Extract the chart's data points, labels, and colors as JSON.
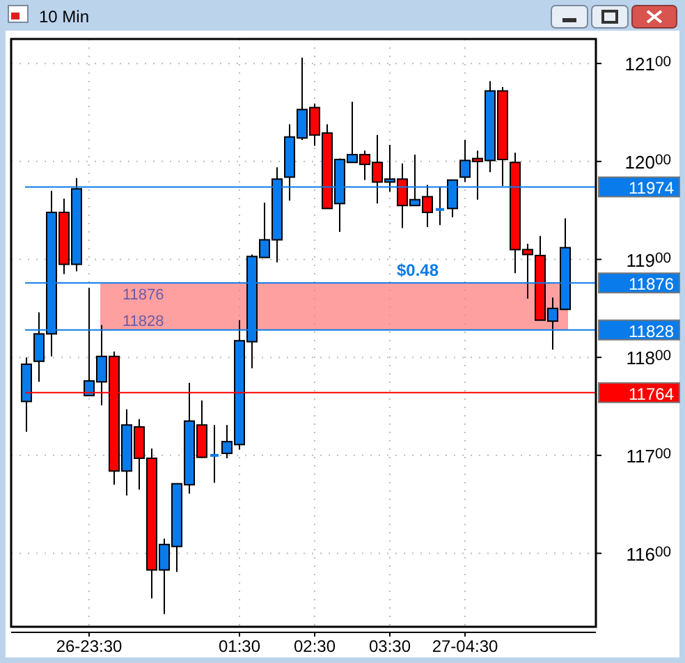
{
  "chart_data": {
    "type": "candlestick",
    "title": "10 Min",
    "categories": [
      null,
      null,
      null,
      null,
      null,
      "26-23:30",
      null,
      null,
      null,
      null,
      null,
      null,
      null,
      null,
      null,
      null,
      null,
      "01:30",
      null,
      null,
      null,
      null,
      null,
      "02:30",
      null,
      null,
      null,
      null,
      null,
      "03:30",
      null,
      null,
      null,
      null,
      null,
      "27-04:30",
      null,
      null,
      null,
      null,
      null,
      null,
      null,
      null
    ],
    "ohlc": [
      [
        11755,
        11800,
        11724,
        11793
      ],
      [
        11796,
        11846,
        11775,
        11824
      ],
      [
        11824,
        11970,
        11801,
        11948
      ],
      [
        11948,
        11962,
        11885,
        11895
      ],
      [
        11895,
        11983,
        11888,
        11972
      ],
      [
        11761,
        11871,
        11761,
        11776
      ],
      [
        11775,
        11833,
        11751,
        11801
      ],
      [
        11801,
        11806,
        11670,
        11684
      ],
      [
        11684,
        11747,
        11659,
        11731
      ],
      [
        11729,
        11737,
        11665,
        11697
      ],
      [
        11697,
        11707,
        11554,
        11583
      ],
      [
        11583,
        11615,
        11538,
        11609
      ],
      [
        11607,
        11671,
        11581,
        11671
      ],
      [
        11670,
        11774,
        11661,
        11735
      ],
      [
        11731,
        11756,
        11697,
        11698
      ],
      [
        11700,
        11731,
        11672,
        11700
      ],
      [
        11702,
        11731,
        11697,
        11714
      ],
      [
        11711,
        11838,
        11706,
        11817
      ],
      [
        11816,
        11905,
        11789,
        11903
      ],
      [
        11902,
        11958,
        11902,
        11920
      ],
      [
        11920,
        11994,
        11897,
        11982
      ],
      [
        11984,
        12038,
        11960,
        12025
      ],
      [
        12024,
        12106,
        12022,
        12053
      ],
      [
        12055,
        12059,
        12016,
        12027
      ],
      [
        12029,
        12038,
        11952,
        11952
      ],
      [
        11957,
        12003,
        11928,
        12002
      ],
      [
        11999,
        12061,
        11999,
        12007
      ],
      [
        12007,
        12011,
        11981,
        11997
      ],
      [
        11999,
        12027,
        11957,
        11979
      ],
      [
        11979,
        12017,
        11969,
        11982
      ],
      [
        11982,
        11998,
        11932,
        11955
      ],
      [
        11955,
        12007,
        11955,
        11961
      ],
      [
        11964,
        11976,
        11933,
        11948
      ],
      [
        11951,
        11974,
        11935,
        11951
      ],
      [
        11952,
        11981,
        11943,
        11981
      ],
      [
        11984,
        12022,
        11979,
        12001
      ],
      [
        12003,
        12011,
        11961,
        12000
      ],
      [
        12001,
        12082,
        11989,
        12072
      ],
      [
        12072,
        12076,
        11975,
        12002
      ],
      [
        11999,
        12009,
        11886,
        11910
      ],
      [
        11910,
        11916,
        11860,
        11905
      ],
      [
        11904,
        11924,
        11838,
        11838
      ],
      [
        11837,
        11861,
        11808,
        11850
      ],
      [
        11849,
        11942,
        11849,
        11912
      ]
    ],
    "colors": [
      "#0a7bea",
      "#0a7bea",
      "#0a7bea",
      "#ff0000",
      "#0a7bea",
      "#0a7bea",
      "#0a7bea",
      "#ff0000",
      "#0a7bea",
      "#ff0000",
      "#ff0000",
      "#0a7bea",
      "#0a7bea",
      "#0a7bea",
      "#ff0000",
      "#0a7bea",
      "#0a7bea",
      "#0a7bea",
      "#0a7bea",
      "#0a7bea",
      "#0a7bea",
      "#0a7bea",
      "#0a7bea",
      "#ff0000",
      "#ff0000",
      "#0a7bea",
      "#0a7bea",
      "#ff0000",
      "#ff0000",
      "#0a7bea",
      "#ff0000",
      "#0a7bea",
      "#ff0000",
      "#0a7bea",
      "#0a7bea",
      "#0a7bea",
      "#ff0000",
      "#0a7bea",
      "#ff0000",
      "#ff0000",
      "#ff0000",
      "#ff0000",
      "#0a7bea",
      "#0a7bea"
    ],
    "ylim": [
      11525,
      12125
    ],
    "yticks": [
      11600,
      11700,
      11800,
      11900,
      12000,
      12100
    ],
    "grid": true,
    "ref_lines": [
      {
        "axis": "y",
        "value": 11974,
        "label": "11974",
        "color": "#0a7bea"
      },
      {
        "axis": "y",
        "value": 11876,
        "label": "11876",
        "color": "#0a7bea"
      },
      {
        "axis": "y",
        "value": 11828,
        "label": "11828",
        "color": "#0a7bea"
      },
      {
        "axis": "y",
        "value": 11764,
        "label": "11764",
        "color": "#ff0000"
      }
    ],
    "bands": [
      {
        "axis": "y",
        "from": 11828,
        "to": 11876,
        "label": "$0.48",
        "color": "#ff8080"
      }
    ],
    "annotations": [
      "11876",
      "11828"
    ]
  }
}
